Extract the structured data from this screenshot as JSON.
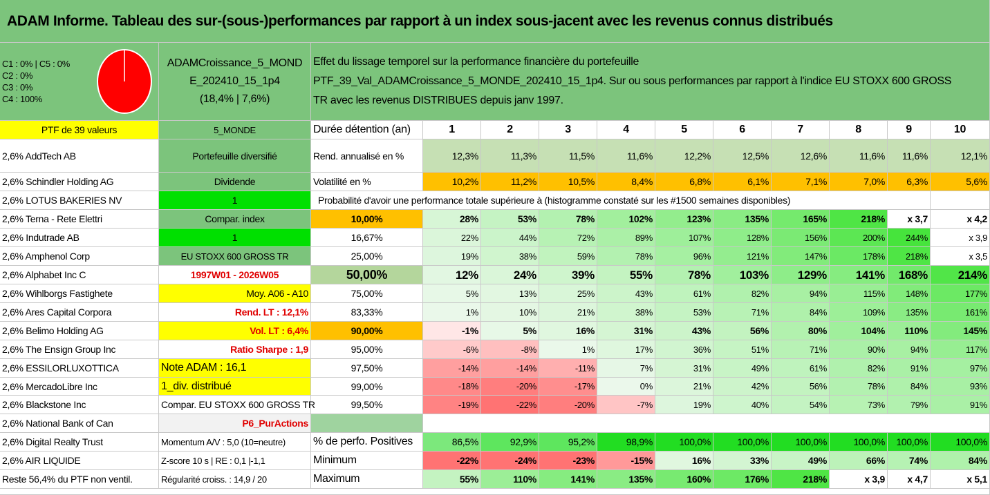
{
  "title": "ADAM Informe. Tableau des sur-(sous-)performances par rapport à un index sous-jacent avec les revenus connus distribués",
  "colors": {
    "green_header": "#7cc47c",
    "yellow": "#ffff00",
    "orange": "#ffc000",
    "bright_green": "#00e000",
    "red_text": "#e00000",
    "pie_red": "#ff0000",
    "pale": "#f2f2f2"
  },
  "classes": [
    "C1 : 0% | C5 : 0%",
    "C2 : 0%",
    "C3 : 0%",
    "C4 : 100%"
  ],
  "fund": {
    "name_line1": "ADAMCroissance_5_MOND",
    "name_line2": "E_202410_15_1p4",
    "perf": "(18,4% | 7,6%)"
  },
  "description": {
    "line1": "Effet du lissage temporel sur la performance financière du portefeuille",
    "line2": "PTF_39_Val_ADAMCroissance_5_MONDE_202410_15_1p4. Sur ou sous performances par rapport à l'indice EU STOXX 600 GROSS",
    "line3": "TR avec les revenus DISTRIBUES depuis janv 1997."
  },
  "ptf_label": "PTF de 39 valeurs",
  "holdings": [
    "2,6% AddTech AB",
    "2,6% Schindler Holding AG",
    "2,6% LOTUS BAKERIES NV",
    "2,6% Terna - Rete Elettri",
    "2,6% Indutrade AB",
    "2,6% Amphenol Corp",
    "2,6% Alphabet Inc C",
    "2,6% Wihlborgs Fastighete",
    "2,6% Ares Capital Corpora",
    "2,6% Belimo Holding AG",
    "2,6% The Ensign Group Inc",
    "2,6% ESSILORLUXOTTICA",
    "2,6% MercadoLibre Inc",
    "2,6% Blackstone Inc",
    "2,6% National Bank of Can",
    "2,6% Digital Realty Trust",
    "2,6% AIR LIQUIDE",
    "Reste 56,4% du PTF non ventil."
  ],
  "params": [
    "5_MONDE",
    "Portefeuille diversifié",
    "Dividende",
    "1",
    "Compar. index",
    "1",
    "EU STOXX 600 GROSS TR",
    "1997W01 - 2026W05",
    "Moy. A06 - A10",
    "Rend. LT : 12,1%",
    "Vol. LT : 6,4%",
    "Ratio Sharpe : 1,9",
    "Note ADAM : 16,1",
    "1_div. distribué",
    "Compar. EU STOXX 600 GROSS TR",
    "P6_PurActions",
    "Momentum A/V : 5,0 (10=neutre)",
    "Z-score 10 s | RE : 0,1 |-1,1",
    "Régularité croiss. : 14,9 / 20"
  ],
  "header_label": "Durée détention (an)",
  "years": [
    "1",
    "2",
    "3",
    "4",
    "5",
    "6",
    "7",
    "8",
    "9",
    "10"
  ],
  "rend_label": "Rend. annualisé en %",
  "rend": [
    "12,3%",
    "11,3%",
    "11,5%",
    "11,6%",
    "12,2%",
    "12,5%",
    "12,6%",
    "11,6%",
    "11,6%",
    "12,1%"
  ],
  "vol_label": "Volatilité en %",
  "vol": [
    "10,2%",
    "11,2%",
    "10,5%",
    "8,4%",
    "6,8%",
    "6,1%",
    "7,1%",
    "7,0%",
    "6,3%",
    "5,6%"
  ],
  "prob_title": "Probabilité d'avoir une performance totale supérieure à (histogramme constaté sur les #1500 semaines disponibles)",
  "prob_rows": [
    {
      "p": "10,00%",
      "v": [
        "28%",
        "53%",
        "78%",
        "102%",
        "123%",
        "135%",
        "165%",
        "218%",
        "x 3,7",
        "x 4,2"
      ]
    },
    {
      "p": "16,67%",
      "v": [
        "22%",
        "44%",
        "72%",
        "89%",
        "107%",
        "128%",
        "156%",
        "200%",
        "244%",
        "x 3,9"
      ]
    },
    {
      "p": "25,00%",
      "v": [
        "19%",
        "38%",
        "59%",
        "78%",
        "96%",
        "121%",
        "147%",
        "178%",
        "218%",
        "x 3,5"
      ]
    },
    {
      "p": "50,00%",
      "v": [
        "12%",
        "24%",
        "39%",
        "55%",
        "78%",
        "103%",
        "129%",
        "141%",
        "168%",
        "214%"
      ]
    },
    {
      "p": "75,00%",
      "v": [
        "5%",
        "13%",
        "25%",
        "43%",
        "61%",
        "82%",
        "94%",
        "115%",
        "148%",
        "177%"
      ]
    },
    {
      "p": "83,33%",
      "v": [
        "1%",
        "10%",
        "21%",
        "38%",
        "53%",
        "71%",
        "84%",
        "109%",
        "135%",
        "161%"
      ]
    },
    {
      "p": "90,00%",
      "v": [
        "-1%",
        "5%",
        "16%",
        "31%",
        "43%",
        "56%",
        "80%",
        "104%",
        "110%",
        "145%"
      ]
    },
    {
      "p": "95,00%",
      "v": [
        "-6%",
        "-8%",
        "1%",
        "17%",
        "36%",
        "51%",
        "71%",
        "90%",
        "94%",
        "117%"
      ]
    },
    {
      "p": "97,50%",
      "v": [
        "-14%",
        "-14%",
        "-11%",
        "7%",
        "31%",
        "49%",
        "61%",
        "82%",
        "91%",
        "97%"
      ]
    },
    {
      "p": "99,00%",
      "v": [
        "-18%",
        "-20%",
        "-17%",
        "0%",
        "21%",
        "42%",
        "56%",
        "78%",
        "84%",
        "93%"
      ]
    },
    {
      "p": "99,50%",
      "v": [
        "-19%",
        "-22%",
        "-20%",
        "-7%",
        "19%",
        "40%",
        "54%",
        "73%",
        "79%",
        "91%"
      ]
    }
  ],
  "pos_label": "% de perfo. Positives",
  "pos": [
    "86,5%",
    "92,9%",
    "95,2%",
    "98,9%",
    "100,0%",
    "100,0%",
    "100,0%",
    "100,0%",
    "100,0%",
    "100,0%"
  ],
  "min_label": "Minimum",
  "min": [
    "-22%",
    "-24%",
    "-23%",
    "-15%",
    "16%",
    "33%",
    "49%",
    "66%",
    "74%",
    "84%"
  ],
  "max_label": "Maximum",
  "max": [
    "55%",
    "110%",
    "141%",
    "135%",
    "160%",
    "176%",
    "218%",
    "x 3,9",
    "x 4,7",
    "x 5,1"
  ]
}
